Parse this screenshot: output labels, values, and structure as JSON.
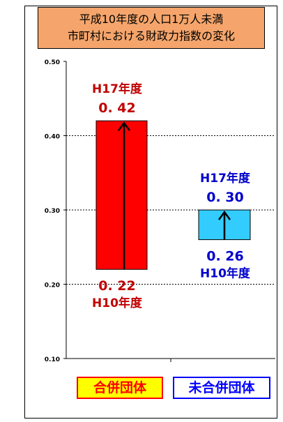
{
  "title_lines": [
    "平成10年度の人口1万人未満",
    "市町村における財政力指数の変化"
  ],
  "chart_data": {
    "type": "bar",
    "ylim": [
      0.1,
      0.5
    ],
    "yticks": [
      "0.10",
      "0.20",
      "0.30",
      "0.40",
      "0.50"
    ],
    "grid": true,
    "categories": [
      "合併団体",
      "未合併団体"
    ],
    "bars": [
      {
        "category": "合併団体",
        "start": 0.22,
        "end": 0.42,
        "color": "#ff0000",
        "start_label_value": "0. 22",
        "start_label_year": "H10年度",
        "end_label_year": "H17年度",
        "end_label_value": "0. 42",
        "label_color": "#c00000"
      },
      {
        "category": "未合併団体",
        "start": 0.26,
        "end": 0.3,
        "color": "#33ccff",
        "start_label_value": "0. 26",
        "start_label_year": "H10年度",
        "end_label_year": "H17年度",
        "end_label_value": "0. 30",
        "label_color": "#0000cc"
      }
    ]
  }
}
